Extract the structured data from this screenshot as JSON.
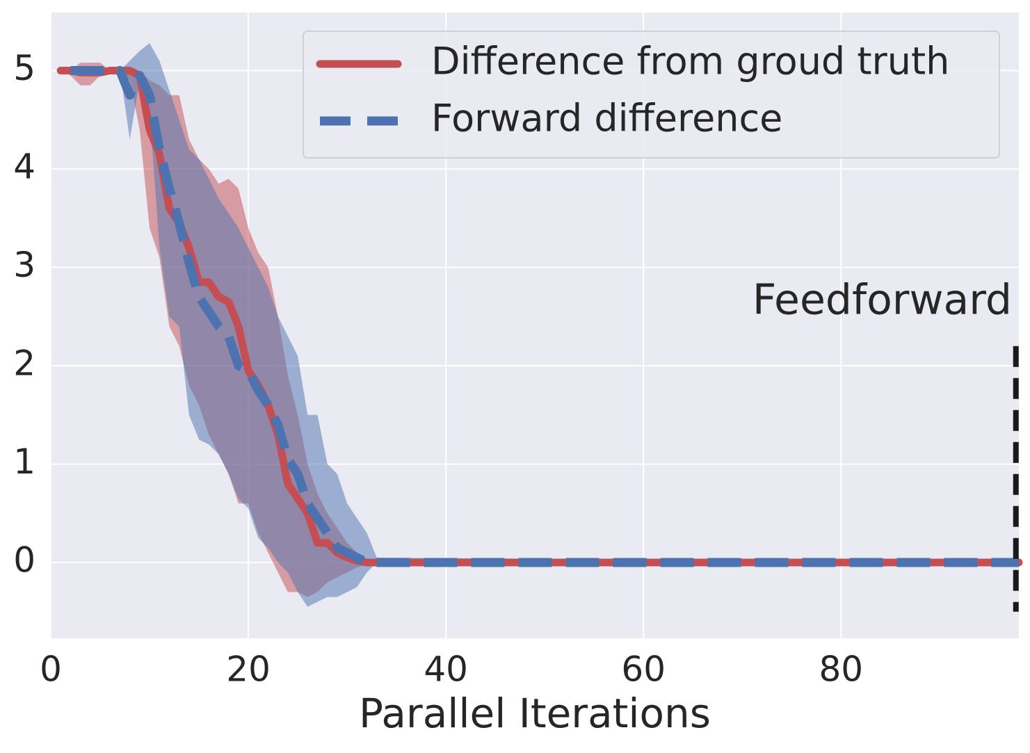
{
  "chart_data": {
    "type": "line",
    "xlabel": "Parallel Iterations",
    "x": [
      1,
      2,
      3,
      4,
      5,
      6,
      7,
      8,
      9,
      10,
      11,
      12,
      13,
      14,
      15,
      16,
      17,
      18,
      19,
      20,
      21,
      22,
      23,
      24,
      25,
      26,
      27,
      28,
      29,
      30,
      31,
      32,
      33,
      98
    ],
    "series": [
      {
        "name": "Difference from groud truth",
        "color": "#c44e52",
        "style": "solid",
        "values": [
          5,
          5,
          4.98,
          4.98,
          4.98,
          5,
          5,
          5,
          4.95,
          4.4,
          4.15,
          3.6,
          3.45,
          3.2,
          2.85,
          2.85,
          2.7,
          2.65,
          2.4,
          1.95,
          1.8,
          1.6,
          1.3,
          0.8,
          0.65,
          0.5,
          0.2,
          0.2,
          0.1,
          0.05,
          0.02,
          0,
          0,
          0
        ],
        "upper": [
          5,
          5,
          5.08,
          5.08,
          5.08,
          5,
          5,
          5,
          5,
          4.9,
          4.85,
          4.75,
          4.75,
          4.3,
          4.1,
          4.0,
          3.85,
          3.9,
          3.8,
          3.4,
          3.15,
          3.0,
          2.5,
          1.9,
          1.5,
          1.0,
          0.7,
          0.5,
          0.35,
          0.2,
          0.1,
          0.03,
          0,
          0
        ],
        "lower": [
          5,
          4.95,
          4.85,
          4.85,
          4.95,
          5,
          5,
          4.9,
          4.4,
          3.4,
          3.1,
          2.4,
          2.2,
          1.8,
          1.6,
          1.3,
          1.1,
          0.9,
          0.6,
          0.6,
          0.3,
          0.1,
          -0.1,
          -0.3,
          -0.3,
          -0.35,
          -0.3,
          -0.2,
          -0.15,
          -0.1,
          -0.05,
          -0.02,
          0,
          0
        ]
      },
      {
        "name": "Forward difference",
        "color": "#4c72b0",
        "style": "dashed",
        "values": [
          null,
          5,
          5,
          5,
          5,
          5,
          5,
          4.75,
          4.95,
          4.75,
          4.2,
          3.8,
          3.45,
          3.05,
          2.7,
          2.55,
          2.4,
          2.3,
          2.0,
          1.95,
          1.75,
          1.6,
          1.4,
          1.05,
          0.9,
          0.6,
          0.45,
          0.3,
          0.15,
          0.1,
          0.05,
          0,
          0,
          0
        ],
        "upper": [
          null,
          5,
          5,
          5,
          5,
          5,
          5,
          5.1,
          5.2,
          5.28,
          5.1,
          4.8,
          4.5,
          4.2,
          4.1,
          3.9,
          3.7,
          3.55,
          3.4,
          3.2,
          3.0,
          2.8,
          2.5,
          2.3,
          2.1,
          1.5,
          1.5,
          1.0,
          0.9,
          0.6,
          0.45,
          0.3,
          0.05,
          0
        ],
        "lower": [
          null,
          5,
          5,
          5,
          5,
          5,
          5,
          4.3,
          4.9,
          4.6,
          3.2,
          2.5,
          2.4,
          1.5,
          1.25,
          1.2,
          1.1,
          0.9,
          0.65,
          0.55,
          0.25,
          0.15,
          0.0,
          -0.1,
          -0.3,
          -0.45,
          -0.4,
          -0.35,
          -0.35,
          -0.3,
          -0.25,
          -0.1,
          0,
          0
        ]
      }
    ],
    "vline": {
      "label": "Feedforward",
      "x": 97.7,
      "ymin": -0.5,
      "ymax": 2.2
    },
    "xlim": [
      0,
      98
    ],
    "ylim": [
      -0.77,
      5.59
    ],
    "xticks": [
      0,
      20,
      40,
      60,
      80
    ],
    "yticks": [
      0,
      1,
      2,
      3,
      4,
      5
    ],
    "grid": true,
    "legend": "upper right"
  }
}
